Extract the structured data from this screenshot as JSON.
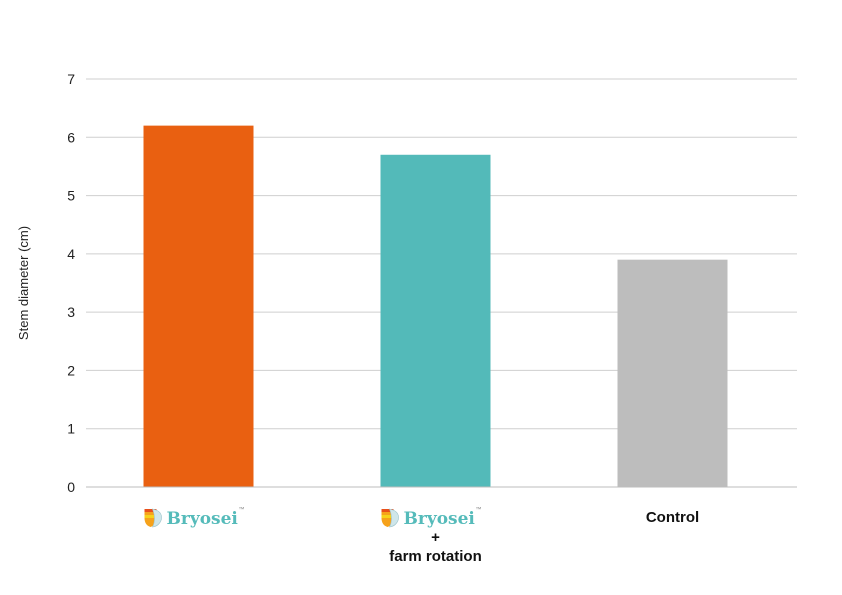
{
  "chart_data": {
    "type": "bar",
    "ylabel": "Stem diameter (cm)",
    "ylim": [
      0,
      7
    ],
    "yticks": [
      0,
      1,
      2,
      3,
      4,
      5,
      6,
      7
    ],
    "grid": true,
    "bars": [
      {
        "brand": "Bryosei",
        "tm": "™",
        "label_lines": [],
        "value": 6.2,
        "color": "#e96011"
      },
      {
        "brand": "Bryosei",
        "tm": "™",
        "label_lines": [
          "+",
          "farm rotation"
        ],
        "value": 5.7,
        "color": "#53bab9"
      },
      {
        "brand": "",
        "tm": "",
        "label_lines": [
          "Control"
        ],
        "value": 3.9,
        "color": "#bdbdbd"
      }
    ]
  }
}
